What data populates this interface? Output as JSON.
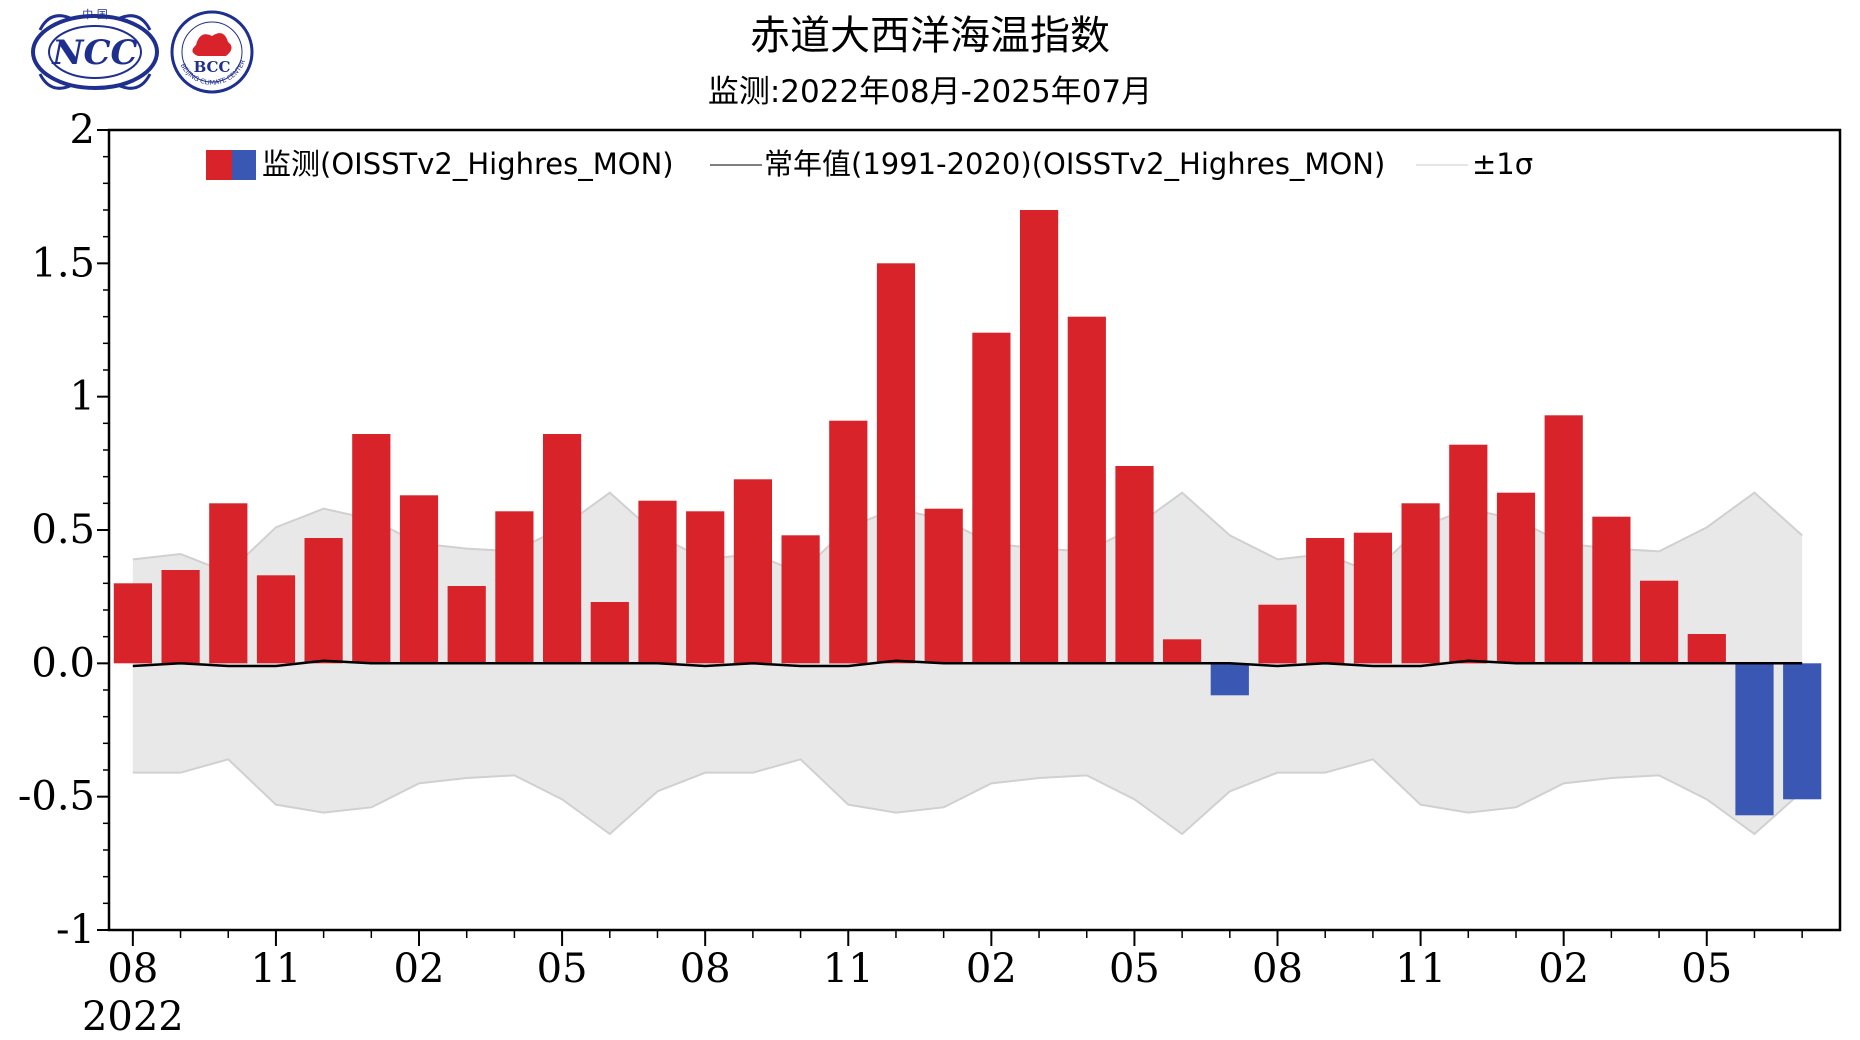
{
  "header": {
    "title": "赤道大西洋海温指数",
    "subtitle": "监测:2022年08月-2025年07月"
  },
  "logos": {
    "ncc": {
      "name": "ncc-logo",
      "text": "NCC",
      "top_text": "中 国"
    },
    "bcc": {
      "name": "bcc-logo",
      "text": "BCC",
      "ring_text": "BEIJING CLIMATE CENTER"
    }
  },
  "legend": {
    "monitor_label": "监测(OISSTv2_Highres_MON)",
    "normal_label": "常年值(1991-2020)(OISSTv2_Highres_MON)",
    "sigma_label": "±1σ"
  },
  "colors": {
    "positive": "#d9232a",
    "negative": "#3a57b4",
    "band": "#e8e8e8",
    "band_edge": "#d0d0d0",
    "normal_line": "#000000",
    "axis": "#000000"
  },
  "chart_data": {
    "type": "bar",
    "title": "赤道大西洋海温指数",
    "subtitle": "监测:2022年08月-2025年07月",
    "xlabel": "",
    "ylabel": "",
    "ylim": [
      -1,
      2
    ],
    "yticks": [
      -1,
      -0.5,
      0,
      0.5,
      1,
      1.5,
      2
    ],
    "ytick_labels": [
      "-1",
      "-0.5",
      "0.0",
      "0.5",
      "1",
      "1.5",
      "2"
    ],
    "categories": [
      "2022-08",
      "2022-09",
      "2022-10",
      "2022-11",
      "2022-12",
      "2023-01",
      "2023-02",
      "2023-03",
      "2023-04",
      "2023-05",
      "2023-06",
      "2023-07",
      "2023-08",
      "2023-09",
      "2023-10",
      "2023-11",
      "2023-12",
      "2024-01",
      "2024-02",
      "2024-03",
      "2024-04",
      "2024-05",
      "2024-06",
      "2024-07",
      "2024-08",
      "2024-09",
      "2024-10",
      "2024-11",
      "2024-12",
      "2025-01",
      "2025-02",
      "2025-03",
      "2025-04",
      "2025-05",
      "2025-06",
      "2025-07"
    ],
    "x_tick_labels": [
      {
        "index": 0,
        "label": "08",
        "sub": "2022"
      },
      {
        "index": 3,
        "label": "11"
      },
      {
        "index": 6,
        "label": "02"
      },
      {
        "index": 9,
        "label": "05"
      },
      {
        "index": 12,
        "label": "08"
      },
      {
        "index": 15,
        "label": "11"
      },
      {
        "index": 18,
        "label": "02"
      },
      {
        "index": 21,
        "label": "05"
      },
      {
        "index": 24,
        "label": "08"
      },
      {
        "index": 27,
        "label": "11"
      },
      {
        "index": 30,
        "label": "02"
      },
      {
        "index": 33,
        "label": "05"
      }
    ],
    "series": [
      {
        "name": "监测(OISSTv2_Highres_MON)",
        "values": [
          0.3,
          0.35,
          0.6,
          0.33,
          0.47,
          0.86,
          0.63,
          0.29,
          0.57,
          0.86,
          0.23,
          0.61,
          0.57,
          0.69,
          0.48,
          0.91,
          1.5,
          0.58,
          1.24,
          1.7,
          1.3,
          0.74,
          0.09,
          -0.12,
          0.22,
          0.47,
          0.49,
          0.6,
          0.82,
          0.64,
          0.93,
          0.55,
          0.31,
          0.11,
          -0.57,
          -0.51
        ]
      },
      {
        "name": "常年值(1991-2020)(OISSTv2_Highres_MON)",
        "values": [
          -0.01,
          0.0,
          -0.01,
          -0.01,
          0.01,
          0.0,
          0.0,
          0.0,
          0.0,
          0.0,
          0.0,
          0.0,
          -0.01,
          0.0,
          -0.01,
          -0.01,
          0.01,
          0.0,
          0.0,
          0.0,
          0.0,
          0.0,
          0.0,
          0.0,
          -0.01,
          0.0,
          -0.01,
          -0.01,
          0.01,
          0.0,
          0.0,
          0.0,
          0.0,
          0.0,
          0.0,
          0.0
        ]
      },
      {
        "name": "±1σ",
        "values": [
          0.4,
          0.41,
          0.35,
          0.52,
          0.57,
          0.54,
          0.45,
          0.43,
          0.42,
          0.51,
          0.64,
          0.48,
          0.4,
          0.41,
          0.35,
          0.52,
          0.57,
          0.54,
          0.45,
          0.43,
          0.42,
          0.51,
          0.64,
          0.48,
          0.4,
          0.41,
          0.35,
          0.52,
          0.57,
          0.54,
          0.45,
          0.43,
          0.42,
          0.51,
          0.64,
          0.48
        ]
      }
    ],
    "legend_position": "top",
    "grid": false
  }
}
